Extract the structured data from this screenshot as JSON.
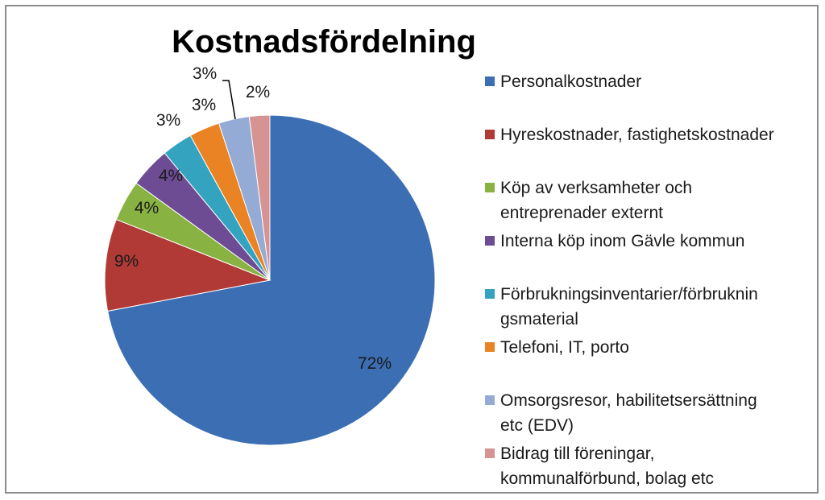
{
  "chart_data": {
    "type": "pie",
    "title": "Kostnadsfördelning",
    "legend_position": "right",
    "slices": [
      {
        "label": "Personalkostnader",
        "value": 72,
        "data_label": "72%",
        "color": "#3c6eb4"
      },
      {
        "label": "Hyreskostnader, fastighetskostnader",
        "value": 9,
        "data_label": "9%",
        "color": "#b13a36"
      },
      {
        "label": "Köp av verksamheter och entreprenader externt",
        "value": 4,
        "data_label": "4%",
        "color": "#88b242"
      },
      {
        "label": "Interna köp inom Gävle kommun",
        "value": 4,
        "data_label": "4%",
        "color": "#6e4c94"
      },
      {
        "label": "Förbrukningsinventarier/förbrukningsmaterial",
        "value": 3,
        "data_label": "3%",
        "color": "#34a3bf"
      },
      {
        "label": "Telefoni, IT, porto",
        "value": 3,
        "data_label": "3%",
        "color": "#ea8324"
      },
      {
        "label": "Omsorgsresor, habilitetsersättning etc (EDV)",
        "value": 3,
        "data_label": "3%",
        "color": "#94abd5"
      },
      {
        "label": "Bidrag till föreningar, kommunalförbund, bolag etc",
        "value": 2,
        "data_label": "2%",
        "color": "#d69391"
      }
    ],
    "legend_lines": [
      "Personalkostnader",
      "Hyreskostnader, fastighetskostnader",
      "Köp av verksamheter och\nentreprenader externt",
      "Interna köp inom Gävle kommun",
      "Förbrukningsinventarier/förbruknin\ngsmaterial",
      "Telefoni, IT, porto",
      "Omsorgsresor, habilitetsersättning\netc (EDV)",
      "Bidrag till föreningar,\nkommunalförbund, bolag etc"
    ]
  }
}
